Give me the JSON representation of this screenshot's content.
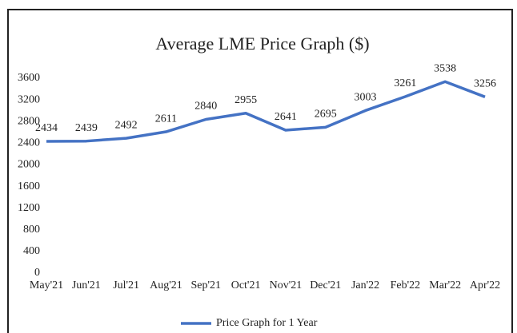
{
  "chart_data": {
    "type": "line",
    "title": "Average LME Price Graph ($)",
    "categories": [
      "May'21",
      "Jun'21",
      "Jul'21",
      "Aug'21",
      "Sep'21",
      "Oct'21",
      "Nov'21",
      "Dec'21",
      "Jan'22",
      "Feb'22",
      "Mar'22",
      "Apr'22"
    ],
    "series": [
      {
        "name": "Price Graph for 1 Year",
        "color": "#4472c4",
        "values": [
          2434,
          2439,
          2492,
          2611,
          2840,
          2955,
          2641,
          2695,
          3003,
          3261,
          3538,
          3256
        ]
      }
    ],
    "ylim": [
      0,
      3600
    ],
    "yticks": [
      0,
      400,
      800,
      1200,
      1600,
      2000,
      2400,
      2800,
      3200,
      3600
    ],
    "grid": false,
    "legend": "bottom"
  }
}
